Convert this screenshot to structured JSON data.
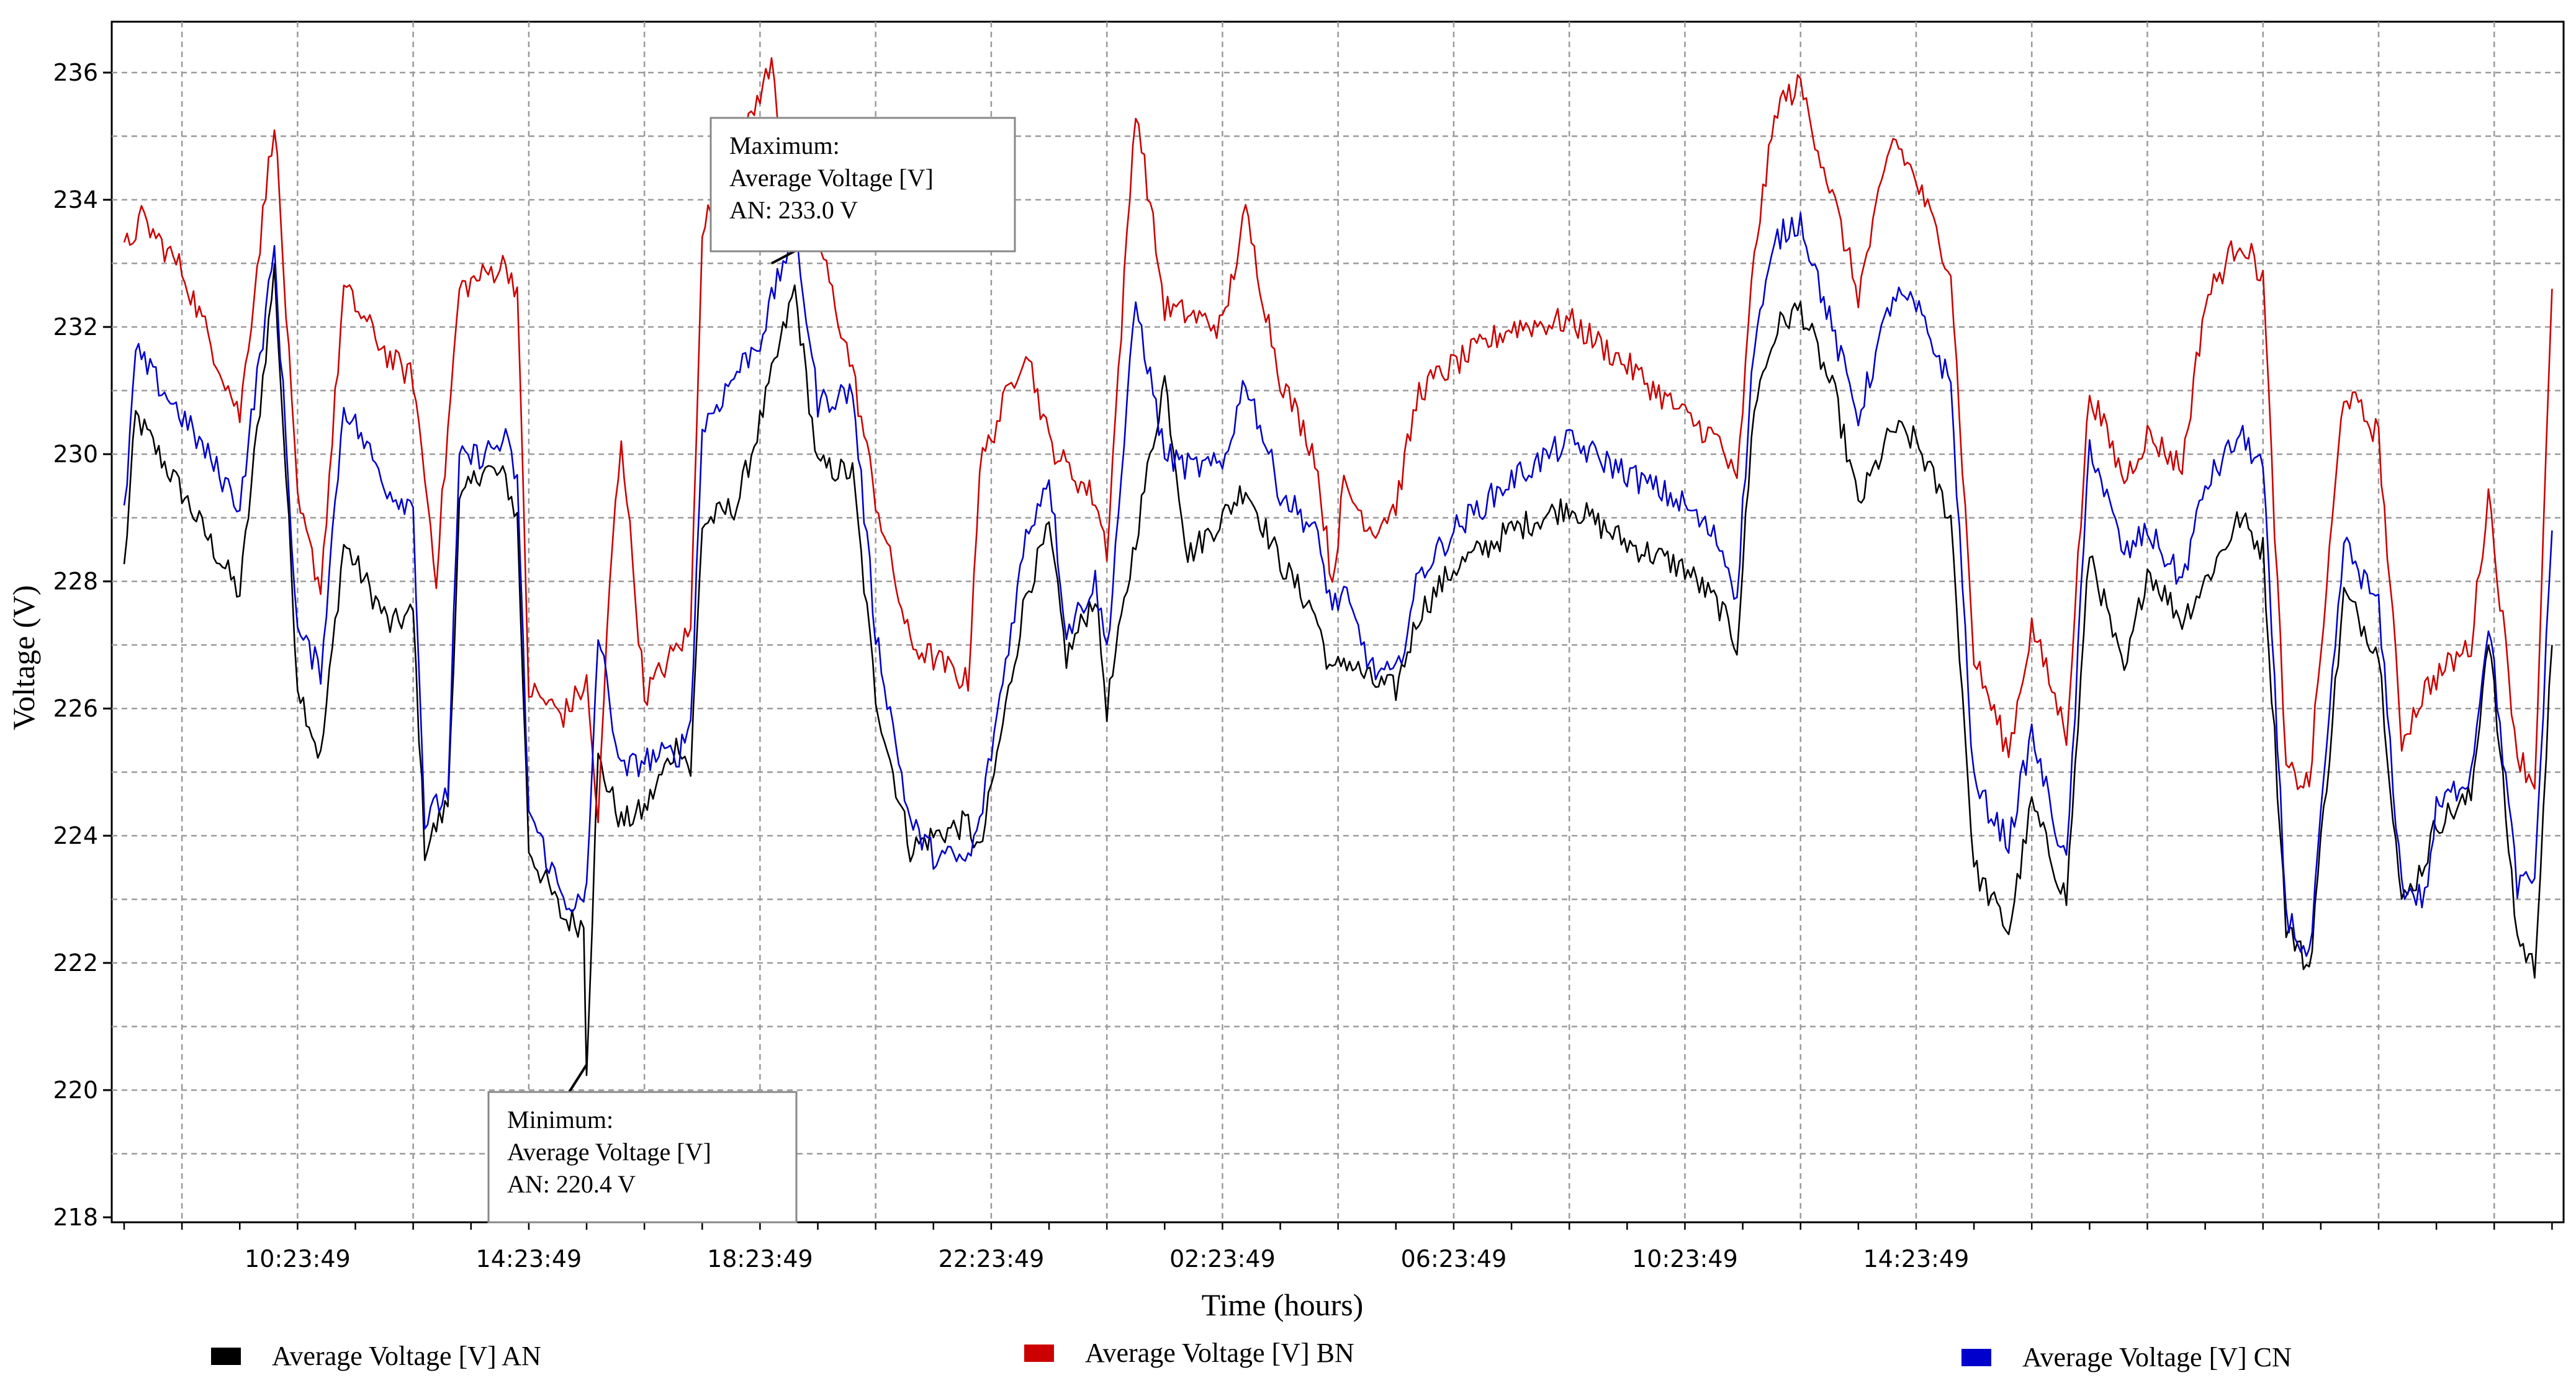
{
  "chart_data": {
    "type": "line",
    "xlabel": "Time (hours)",
    "ylabel": "Voltage (V)",
    "ylim": [
      218,
      236.8
    ],
    "y_ticks": [
      218,
      220,
      222,
      224,
      226,
      228,
      230,
      232,
      234,
      236
    ],
    "x_range": [
      "07:23:49",
      "17:23:49 (next day)"
    ],
    "x_tick_labels": [
      "10:23:49",
      "14:23:49",
      "18:23:49",
      "22:23:49",
      "02:23:49",
      "06:23:49",
      "10:23:49",
      "14:23:49"
    ],
    "x_tick_hours": [
      3,
      7,
      11,
      15,
      19,
      23,
      27,
      31
    ],
    "grid": true,
    "legend_position": "bottom",
    "series": [
      {
        "name": "Average Voltage [V] AN",
        "color": "#000000",
        "points": [
          [
            0,
            228.2
          ],
          [
            0.2,
            230.6
          ],
          [
            1,
            229.4
          ],
          [
            2,
            227.8
          ],
          [
            2.6,
            232.9
          ],
          [
            3,
            226.4
          ],
          [
            3.4,
            225.2
          ],
          [
            3.8,
            228.6
          ],
          [
            4.6,
            227.3
          ],
          [
            5,
            227.5
          ],
          [
            5.2,
            223.8
          ],
          [
            5.6,
            224.5
          ],
          [
            5.8,
            229.2
          ],
          [
            6.2,
            229.8
          ],
          [
            6.6,
            229.6
          ],
          [
            6.8,
            229.0
          ],
          [
            7,
            223.8
          ],
          [
            7.6,
            222.7
          ],
          [
            7.95,
            222.6
          ],
          [
            8.0,
            220.4
          ],
          [
            8.2,
            225.2
          ],
          [
            8.6,
            224.2
          ],
          [
            9,
            224.4
          ],
          [
            9.6,
            225.5
          ],
          [
            9.8,
            225.0
          ],
          [
            10,
            228.9
          ],
          [
            10.6,
            229.2
          ],
          [
            11,
            230.5
          ],
          [
            11.6,
            232.6
          ],
          [
            12,
            229.8
          ],
          [
            12.6,
            229.7
          ],
          [
            13,
            226.2
          ],
          [
            13.6,
            223.8
          ],
          [
            14,
            224.0
          ],
          [
            14.6,
            224.2
          ],
          [
            14.8,
            223.7
          ],
          [
            15.6,
            227.8
          ],
          [
            16,
            228.8
          ],
          [
            16.3,
            226.8
          ],
          [
            16.8,
            227.8
          ],
          [
            17,
            226.0
          ],
          [
            17.5,
            228.7
          ],
          [
            18,
            231.2
          ],
          [
            18.4,
            228.4
          ],
          [
            19,
            229.0
          ],
          [
            19.4,
            229.5
          ],
          [
            20,
            228.3
          ],
          [
            20.6,
            227.5
          ],
          [
            20.9,
            226.5
          ],
          [
            21.1,
            226.8
          ],
          [
            21.6,
            226.4
          ],
          [
            22,
            226.3
          ],
          [
            22.4,
            227.5
          ],
          [
            23,
            228.2
          ],
          [
            24,
            228.8
          ],
          [
            25,
            229.2
          ],
          [
            26,
            228.6
          ],
          [
            27,
            228.2
          ],
          [
            27.6,
            227.6
          ],
          [
            27.9,
            227.0
          ],
          [
            28.2,
            230.8
          ],
          [
            28.6,
            232.0
          ],
          [
            29,
            232.3
          ],
          [
            29.6,
            230.9
          ],
          [
            30,
            229.2
          ],
          [
            30.6,
            230.4
          ],
          [
            31,
            230.2
          ],
          [
            31.6,
            229.0
          ],
          [
            32,
            223.5
          ],
          [
            32.6,
            222.5
          ],
          [
            33,
            224.5
          ],
          [
            33.6,
            223.0
          ],
          [
            34,
            228.5
          ],
          [
            34.6,
            226.5
          ],
          [
            35,
            228.2
          ],
          [
            35.6,
            227.4
          ],
          [
            36,
            228.0
          ],
          [
            36.6,
            229.0
          ],
          [
            37,
            228.5
          ],
          [
            37.4,
            222.6
          ],
          [
            37.8,
            221.9
          ],
          [
            38.4,
            227.8
          ],
          [
            39,
            226.9
          ],
          [
            39.4,
            222.9
          ],
          [
            39.8,
            223.6
          ],
          [
            40,
            224.2
          ],
          [
            40.6,
            224.6
          ],
          [
            40.9,
            227.2
          ],
          [
            41.4,
            222.4
          ],
          [
            41.7,
            221.9
          ],
          [
            42.0,
            227.0
          ]
        ]
      },
      {
        "name": "Average Voltage [V] BN",
        "color": "#cc0000",
        "points": [
          [
            0,
            233.2
          ],
          [
            0.3,
            233.7
          ],
          [
            1,
            232.9
          ],
          [
            2,
            230.6
          ],
          [
            2.6,
            235.3
          ],
          [
            3,
            229.2
          ],
          [
            3.4,
            227.9
          ],
          [
            3.8,
            232.6
          ],
          [
            4.6,
            231.5
          ],
          [
            5,
            231.2
          ],
          [
            5.4,
            228.1
          ],
          [
            5.8,
            232.6
          ],
          [
            6.2,
            232.8
          ],
          [
            6.6,
            233.0
          ],
          [
            6.8,
            232.6
          ],
          [
            7,
            226.3
          ],
          [
            7.6,
            225.9
          ],
          [
            8,
            226.4
          ],
          [
            8.2,
            224.2
          ],
          [
            8.4,
            228.0
          ],
          [
            8.6,
            230.3
          ],
          [
            9,
            226.2
          ],
          [
            9.6,
            227.0
          ],
          [
            9.8,
            227.2
          ],
          [
            10,
            233.6
          ],
          [
            10.6,
            234.6
          ],
          [
            11,
            235.7
          ],
          [
            11.2,
            236.1
          ],
          [
            11.6,
            233.6
          ],
          [
            12,
            233.4
          ],
          [
            12.6,
            231.3
          ],
          [
            13,
            229.3
          ],
          [
            13.6,
            227.0
          ],
          [
            14,
            226.8
          ],
          [
            14.6,
            226.4
          ],
          [
            14.8,
            229.8
          ],
          [
            15.6,
            231.7
          ],
          [
            16,
            230.2
          ],
          [
            16.3,
            229.8
          ],
          [
            16.8,
            229.3
          ],
          [
            17,
            228.5
          ],
          [
            17.5,
            235.5
          ],
          [
            18,
            232.3
          ],
          [
            18.4,
            232.2
          ],
          [
            19,
            232.0
          ],
          [
            19.4,
            233.8
          ],
          [
            20,
            231.2
          ],
          [
            20.6,
            230.0
          ],
          [
            20.9,
            228.0
          ],
          [
            21.1,
            229.5
          ],
          [
            21.6,
            228.8
          ],
          [
            22,
            229.2
          ],
          [
            22.4,
            231.0
          ],
          [
            23,
            231.4
          ],
          [
            24,
            232.0
          ],
          [
            25,
            232.1
          ],
          [
            26,
            231.4
          ],
          [
            27,
            230.6
          ],
          [
            27.6,
            230.2
          ],
          [
            27.9,
            229.5
          ],
          [
            28.2,
            233.2
          ],
          [
            28.6,
            235.5
          ],
          [
            29,
            235.8
          ],
          [
            29.6,
            233.9
          ],
          [
            30,
            232.5
          ],
          [
            30.6,
            235.0
          ],
          [
            31,
            234.3
          ],
          [
            31.6,
            232.9
          ],
          [
            32,
            226.8
          ],
          [
            32.6,
            225.3
          ],
          [
            33,
            227.3
          ],
          [
            33.6,
            225.6
          ],
          [
            34,
            231.0
          ],
          [
            34.6,
            229.6
          ],
          [
            35,
            230.3
          ],
          [
            35.6,
            229.8
          ],
          [
            36,
            232.4
          ],
          [
            36.6,
            233.4
          ],
          [
            37,
            232.8
          ],
          [
            37.4,
            225.0
          ],
          [
            37.8,
            224.8
          ],
          [
            38.4,
            231.0
          ],
          [
            39,
            230.3
          ],
          [
            39.4,
            225.5
          ],
          [
            39.8,
            226.3
          ],
          [
            40,
            226.5
          ],
          [
            40.6,
            227.0
          ],
          [
            40.9,
            229.4
          ],
          [
            41.4,
            225.3
          ],
          [
            41.7,
            224.8
          ],
          [
            42.0,
            232.6
          ]
        ]
      },
      {
        "name": "Average Voltage [V] CN",
        "color": "#0000cc",
        "points": [
          [
            0,
            229.0
          ],
          [
            0.2,
            231.6
          ],
          [
            1,
            230.6
          ],
          [
            2,
            229.2
          ],
          [
            2.6,
            233.2
          ],
          [
            3,
            227.2
          ],
          [
            3.4,
            226.6
          ],
          [
            3.8,
            230.8
          ],
          [
            4.6,
            229.4
          ],
          [
            5,
            229.2
          ],
          [
            5.2,
            224.2
          ],
          [
            5.6,
            224.7
          ],
          [
            5.8,
            229.9
          ],
          [
            6.2,
            230.0
          ],
          [
            6.6,
            230.2
          ],
          [
            6.8,
            229.6
          ],
          [
            7,
            224.4
          ],
          [
            7.6,
            223.0
          ],
          [
            7.95,
            222.9
          ],
          [
            8.0,
            223.1
          ],
          [
            8.2,
            227.2
          ],
          [
            8.6,
            225.0
          ],
          [
            9,
            225.2
          ],
          [
            9.6,
            225.3
          ],
          [
            9.8,
            225.8
          ],
          [
            10,
            230.4
          ],
          [
            10.6,
            231.3
          ],
          [
            11,
            231.8
          ],
          [
            11.6,
            233.6
          ],
          [
            12,
            230.8
          ],
          [
            12.6,
            231.0
          ],
          [
            13,
            227.2
          ],
          [
            13.6,
            224.2
          ],
          [
            14,
            223.7
          ],
          [
            14.6,
            223.6
          ],
          [
            14.8,
            224.2
          ],
          [
            15.6,
            228.7
          ],
          [
            16,
            229.7
          ],
          [
            16.3,
            227.2
          ],
          [
            16.8,
            228.0
          ],
          [
            17,
            226.9
          ],
          [
            17.5,
            232.4
          ],
          [
            18,
            230.0
          ],
          [
            18.4,
            229.8
          ],
          [
            19,
            229.8
          ],
          [
            19.4,
            231.2
          ],
          [
            20,
            229.4
          ],
          [
            20.6,
            228.8
          ],
          [
            20.9,
            227.6
          ],
          [
            21.1,
            227.8
          ],
          [
            21.6,
            226.6
          ],
          [
            22,
            226.5
          ],
          [
            22.4,
            228.1
          ],
          [
            23,
            228.8
          ],
          [
            24,
            229.6
          ],
          [
            25,
            230.2
          ],
          [
            26,
            229.7
          ],
          [
            27,
            229.2
          ],
          [
            27.6,
            228.6
          ],
          [
            27.9,
            227.8
          ],
          [
            28.2,
            231.8
          ],
          [
            28.6,
            233.4
          ],
          [
            29,
            233.7
          ],
          [
            29.6,
            231.8
          ],
          [
            30,
            230.6
          ],
          [
            30.6,
            232.5
          ],
          [
            31,
            232.3
          ],
          [
            31.6,
            231.1
          ],
          [
            32,
            224.8
          ],
          [
            32.6,
            223.9
          ],
          [
            33,
            225.6
          ],
          [
            33.6,
            223.5
          ],
          [
            34,
            230.2
          ],
          [
            34.6,
            228.4
          ],
          [
            35,
            228.8
          ],
          [
            35.6,
            228.0
          ],
          [
            36,
            229.5
          ],
          [
            36.6,
            230.3
          ],
          [
            37,
            229.8
          ],
          [
            37.4,
            222.8
          ],
          [
            37.8,
            222.0
          ],
          [
            38.4,
            228.6
          ],
          [
            39,
            227.6
          ],
          [
            39.4,
            223.2
          ],
          [
            39.8,
            223.0
          ],
          [
            40,
            224.4
          ],
          [
            40.6,
            225.0
          ],
          [
            40.9,
            227.4
          ],
          [
            41.4,
            223.2
          ],
          [
            41.7,
            223.3
          ],
          [
            42.0,
            228.8
          ]
        ]
      }
    ],
    "annotations": [
      {
        "lines": [
          "Maximum:",
          "Average Voltage [V]",
          "AN: 233.0 V"
        ],
        "point": [
          11.2,
          233.0
        ]
      },
      {
        "lines": [
          "Minimum:",
          "Average Voltage [V]",
          "AN: 220.4 V"
        ],
        "point": [
          8.0,
          220.4
        ]
      }
    ]
  }
}
